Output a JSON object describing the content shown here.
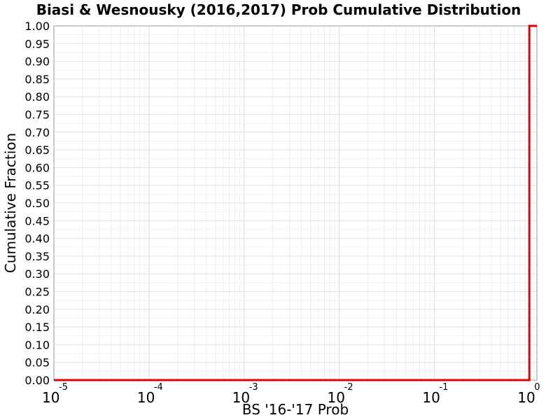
{
  "chart_data": {
    "type": "line",
    "title": "Biasi & Wesnousky (2016,2017) Prob Cumulative Distribution",
    "xlabel": "BS '16-'17 Prob",
    "ylabel": "Cumulative Fraction",
    "x_scale": "log",
    "xlim": [
      1e-05,
      1.2
    ],
    "ylim": [
      0,
      1
    ],
    "grid": true,
    "x_ticks": [
      {
        "base": "10",
        "exp": "-5",
        "value": 1e-05
      },
      {
        "base": "10",
        "exp": "-4",
        "value": 0.0001
      },
      {
        "base": "10",
        "exp": "-3",
        "value": 0.001
      },
      {
        "base": "10",
        "exp": "-2",
        "value": 0.01
      },
      {
        "base": "10",
        "exp": "-1",
        "value": 0.1
      },
      {
        "base": "10",
        "exp": "0",
        "value": 1
      }
    ],
    "y_ticks": [
      "0.00",
      "0.05",
      "0.10",
      "0.15",
      "0.20",
      "0.25",
      "0.30",
      "0.35",
      "0.40",
      "0.45",
      "0.50",
      "0.55",
      "0.60",
      "0.65",
      "0.70",
      "0.75",
      "0.80",
      "0.85",
      "0.90",
      "0.95",
      "1.00"
    ],
    "series": [
      {
        "color": "#e00000",
        "x": [
          1e-05,
          1,
          1,
          1.2
        ],
        "y": [
          0,
          0,
          1,
          1
        ]
      }
    ]
  }
}
